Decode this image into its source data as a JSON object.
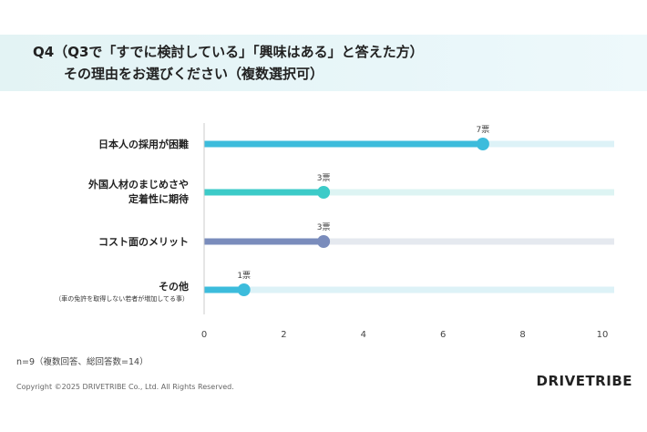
{
  "header": {
    "line1": "Q4（Q3で「すでに検討している」「興味はある」と答えた方）",
    "line2": "その理由をお選びください（複数選択可）"
  },
  "chart_data": {
    "type": "bar",
    "categories": [
      [
        "日本人の採用が困難"
      ],
      [
        "外国人材のまじめさや",
        "定着性に期待"
      ],
      [
        "コスト面のメリット"
      ],
      [
        "その他",
        "（車の免許を取得しない若者が増加してる事）"
      ]
    ],
    "values": [
      7,
      3,
      3,
      1
    ],
    "value_labels": [
      "7票",
      "3票",
      "3票",
      "1票"
    ],
    "colors": [
      "#3cbcdc",
      "#3ccbc8",
      "#7a8cbc",
      "#3cbcdc"
    ],
    "track_colors": [
      "#ddf2f7",
      "#ddf4f3",
      "#e5e9ef",
      "#ddf2f7"
    ],
    "xlim": [
      0,
      10
    ],
    "xticks": [
      "0",
      "2",
      "4",
      "6",
      "8",
      "10"
    ],
    "xlabel": "",
    "ylabel": ""
  },
  "footer": {
    "note": "n=9（複数回答、総回答数=14）",
    "copyright": "Copyright ©2025 DRIVETRIBE Co., Ltd. All Rights Reserved.",
    "logo": "DRIVETRIBE"
  }
}
